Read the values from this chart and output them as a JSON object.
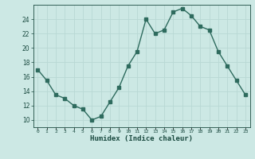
{
  "x": [
    0,
    1,
    2,
    3,
    4,
    5,
    6,
    7,
    8,
    9,
    10,
    11,
    12,
    13,
    14,
    15,
    16,
    17,
    18,
    19,
    20,
    21,
    22,
    23
  ],
  "y": [
    17.0,
    15.5,
    13.5,
    13.0,
    12.0,
    11.5,
    10.0,
    10.5,
    12.5,
    14.5,
    17.5,
    19.5,
    24.0,
    22.0,
    22.5,
    25.0,
    25.5,
    24.5,
    23.0,
    22.5,
    19.5,
    17.5,
    15.5,
    13.5
  ],
  "line_color": "#2e6b5e",
  "bg_color": "#cce8e4",
  "grid_color": "#b8d8d4",
  "xlabel": "Humidex (Indice chaleur)",
  "ylim": [
    9.0,
    26.0
  ],
  "yticks": [
    10,
    12,
    14,
    16,
    18,
    20,
    22,
    24
  ],
  "xlim": [
    -0.5,
    23.5
  ],
  "tick_color": "#1a4a40",
  "xlabel_color": "#1a4a40",
  "marker": "s",
  "markersize": 2.2,
  "linewidth": 1.0
}
